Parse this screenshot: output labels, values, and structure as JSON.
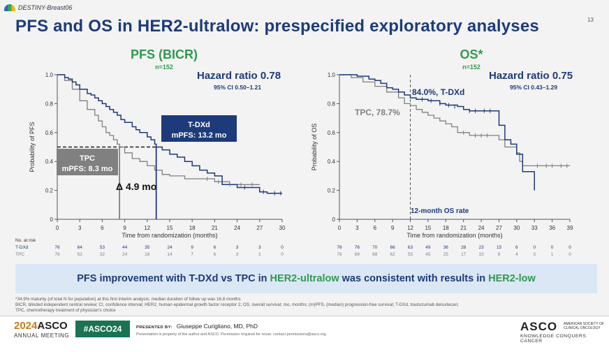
{
  "header": {
    "logo_text": "DESTINY-Breast06",
    "page_number": "13",
    "title": "PFS and OS in HER2-ultralow: prespecified exploratory analyses"
  },
  "colors": {
    "tdxd": "#1d3b7a",
    "tpc": "#808080",
    "green": "#2f9a4e"
  },
  "chart_data": [
    {
      "type": "line",
      "name": "pfs",
      "title": "PFS (BICR)",
      "n": "n=152",
      "hazard_ratio": "Hazard ratio 0.78",
      "ci": "95% CI 0.50–1.21",
      "xlabel": "Time from randomization (months)",
      "ylabel": "Probability of PFS",
      "xlim": [
        0,
        30
      ],
      "ylim": [
        0,
        1
      ],
      "xticks": [
        "0",
        "3",
        "6",
        "9",
        "12",
        "15",
        "18",
        "21",
        "24",
        "27",
        "30"
      ],
      "yticks": [
        "0",
        "0.2",
        "0.4",
        "0.6",
        "0.8",
        "1.0"
      ],
      "series": [
        {
          "name": "T-DXd",
          "x": [
            0,
            1,
            1.5,
            2,
            2.5,
            3,
            4,
            4.5,
            5,
            5.5,
            6,
            6.5,
            7,
            7.5,
            8,
            8.5,
            9,
            10,
            10.5,
            11,
            12,
            12.5,
            13,
            13.2,
            14,
            15,
            16,
            17,
            18,
            19,
            20,
            21,
            22,
            24,
            27,
            28,
            30
          ],
          "y": [
            1,
            0.98,
            0.97,
            0.95,
            0.93,
            0.9,
            0.87,
            0.86,
            0.84,
            0.82,
            0.8,
            0.78,
            0.76,
            0.74,
            0.72,
            0.69,
            0.67,
            0.64,
            0.62,
            0.6,
            0.57,
            0.55,
            0.52,
            0.5,
            0.48,
            0.45,
            0.43,
            0.4,
            0.37,
            0.34,
            0.32,
            0.3,
            0.24,
            0.22,
            0.19,
            0.18,
            0.18
          ]
        },
        {
          "name": "TPC",
          "x": [
            0,
            1,
            2,
            3,
            4,
            5,
            5.5,
            6,
            6.5,
            7,
            7.5,
            8,
            8.3,
            9,
            10,
            11,
            12,
            13,
            14,
            15,
            16,
            17,
            18,
            19,
            21,
            23,
            27
          ],
          "y": [
            1,
            0.96,
            0.9,
            0.82,
            0.76,
            0.72,
            0.68,
            0.64,
            0.6,
            0.58,
            0.55,
            0.52,
            0.5,
            0.46,
            0.42,
            0.4,
            0.37,
            0.34,
            0.31,
            0.3,
            0.3,
            0.28,
            0.28,
            0.28,
            0.26,
            0.24,
            0.24
          ]
        }
      ],
      "median_line_value": 0.5,
      "median_tdxd": 13.2,
      "median_tpc": 8.3,
      "label_tdxd_box": {
        "l1": "T-DXd",
        "l2": "mPFS: 13.2 mo"
      },
      "label_tpc_box": {
        "l1": "TPC",
        "l2": "mPFS: 8.3 mo"
      },
      "delta_label": "Δ 4.9 mo",
      "at_risk": {
        "title": "No. at risk",
        "tdxd_label": "T-DXd",
        "tpc_label": "TPC",
        "tdxd": [
          "76",
          "64",
          "53",
          "44",
          "35",
          "24",
          "9",
          "6",
          "3",
          "3",
          "0"
        ],
        "tpc": [
          "76",
          "52",
          "32",
          "24",
          "18",
          "14",
          "7",
          "6",
          "3",
          "1",
          "0"
        ]
      }
    },
    {
      "type": "line",
      "name": "os",
      "title": "OS*",
      "n": "n=152",
      "hazard_ratio": "Hazard ratio 0.75",
      "ci": "95% CI 0.43–1.29",
      "xlabel": "Time from randomization (months)",
      "ylabel": "Probability of OS",
      "xlim": [
        0,
        39
      ],
      "ylim": [
        0,
        1
      ],
      "xticks": [
        "0",
        "3",
        "6",
        "9",
        "12",
        "15",
        "18",
        "21",
        "24",
        "27",
        "30",
        "33",
        "36",
        "39"
      ],
      "yticks": [
        "0",
        "0.2",
        "0.4",
        "0.6",
        "0.8",
        "1.0"
      ],
      "series": [
        {
          "name": "T-DXd",
          "x": [
            0,
            3,
            5,
            6,
            7,
            8,
            9,
            10,
            11,
            12,
            13,
            15,
            17,
            18,
            20,
            21,
            22,
            24,
            26,
            27,
            28,
            29,
            30,
            31,
            32,
            33
          ],
          "y": [
            1,
            0.99,
            0.97,
            0.96,
            0.94,
            0.91,
            0.9,
            0.88,
            0.86,
            0.84,
            0.83,
            0.82,
            0.8,
            0.79,
            0.78,
            0.76,
            0.75,
            0.75,
            0.75,
            0.65,
            0.55,
            0.52,
            0.45,
            0.33,
            0.33,
            0.2
          ]
        },
        {
          "name": "TPC",
          "x": [
            0,
            2,
            4,
            6,
            8,
            10,
            11,
            12,
            13,
            14,
            15,
            16,
            17,
            18,
            19,
            20,
            22,
            26,
            27,
            28,
            30,
            30.5,
            31,
            33,
            35,
            37,
            39
          ],
          "y": [
            1,
            0.98,
            0.95,
            0.92,
            0.88,
            0.84,
            0.8,
            0.787,
            0.76,
            0.74,
            0.72,
            0.7,
            0.68,
            0.66,
            0.64,
            0.6,
            0.58,
            0.58,
            0.55,
            0.5,
            0.46,
            0.4,
            0.37,
            0.37,
            0.37,
            0.37,
            0.37
          ]
        }
      ],
      "vline_x": 12,
      "label_tdxd": "84.0%, T-DXd",
      "label_tpc": "TPC, 78.7%",
      "vline_label": "12-month OS rate",
      "at_risk": {
        "tdxd": [
          "76",
          "76",
          "70",
          "66",
          "63",
          "49",
          "36",
          "28",
          "23",
          "15",
          "6",
          "0",
          "0",
          "0"
        ],
        "tpc": [
          "76",
          "69",
          "68",
          "62",
          "55",
          "45",
          "25",
          "17",
          "15",
          "9",
          "4",
          "3",
          "1",
          "0"
        ]
      }
    }
  ],
  "banner": {
    "t1": "PFS improvement with T-DXd vs TPC in ",
    "t2": "HER2-ultralow",
    "t3": " was consistent with results in ",
    "t4": "HER2-low"
  },
  "footnotes": {
    "f1": "*34.9% maturity (of total N for population) at this first interim analysis; median duration of follow up was 16.8 months",
    "f2": "BICR, blinded independent central review; CI, confidence interval; HER2, human epidermal growth factor receptor 2; OS, overall survival; mo, months; (m)PFS, (median) progression-free survival; T-DXd, trastuzumab deruxtecan;",
    "f3": "TPC, chemotherapy treatment of physician's choice"
  },
  "footer": {
    "year": "2024",
    "asco": "ASCO",
    "meeting": "ANNUAL MEETING",
    "hashtag": "#ASCO24",
    "presented_by": "PRESENTED BY:",
    "presenter": "Giuseppe Curigliano, MD, PhD",
    "note": "Presentation is property of the author and ASCO. Permission required for reuse; contact permissions@asco.org.",
    "asco_right": "ASCO",
    "society": "AMERICAN SOCIETY OF CLINICAL ONCOLOGY",
    "kcc": "KNOWLEDGE CONQUERS CANCER"
  }
}
